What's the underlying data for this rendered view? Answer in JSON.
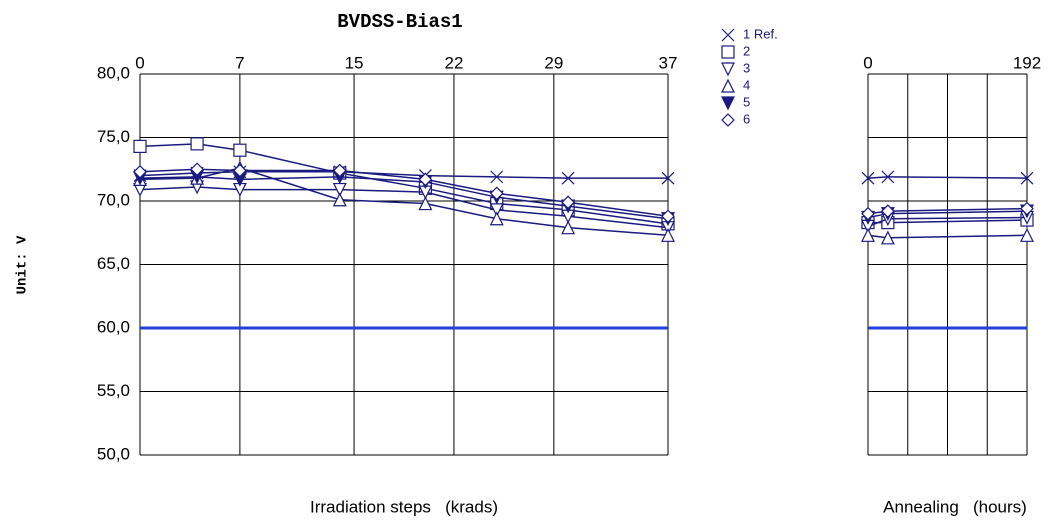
{
  "chart_data": {
    "type": "line",
    "title": "BVDSS-Bias1",
    "ylabel": "Unit: V",
    "xlabel": "Irradiation steps   (krads)",
    "x2label": "Annealing   (hours)",
    "x": [
      0,
      4,
      7,
      14,
      20,
      25,
      30,
      37
    ],
    "x2": [
      0,
      24,
      192
    ],
    "xlim": [
      0,
      37
    ],
    "xticks": [
      0,
      7,
      15,
      22,
      29,
      37
    ],
    "x2lim": [
      0,
      192
    ],
    "x2ticks": [
      0,
      192
    ],
    "x2grid": [
      0,
      48,
      96,
      144,
      192
    ],
    "ylim": [
      50,
      80
    ],
    "yticks": [
      {
        "value": 50,
        "label": "50,0"
      },
      {
        "value": 55,
        "label": "55,0"
      },
      {
        "value": 60,
        "label": "60,0"
      },
      {
        "value": 65,
        "label": "65,0"
      },
      {
        "value": 70,
        "label": "70,0"
      },
      {
        "value": 75,
        "label": "75,0"
      },
      {
        "value": 80,
        "label": "80,0"
      }
    ],
    "grid": true,
    "limit": 60,
    "limit_color": "#1f3fe0",
    "series": [
      {
        "name": "1 Ref.",
        "marker": "x",
        "color": "#1a1a80",
        "values": [
          72.0,
          72.2,
          72.3,
          72.3,
          72.0,
          71.9,
          71.8,
          71.8
        ],
        "values2": [
          71.8,
          71.9,
          71.8
        ]
      },
      {
        "name": "2",
        "marker": "square",
        "color": "#1a1a80",
        "values": [
          74.3,
          74.5,
          74.0,
          72.2,
          71.0,
          69.8,
          69.3,
          68.2
        ],
        "values2": [
          68.3,
          68.3,
          68.5
        ]
      },
      {
        "name": "3",
        "marker": "tri-down",
        "color": "#1a1a80",
        "values": [
          70.9,
          71.1,
          70.9,
          70.9,
          70.7,
          69.3,
          68.8,
          67.9
        ],
        "values2": [
          68.0,
          68.6,
          68.7
        ]
      },
      {
        "name": "4",
        "marker": "tri-up",
        "color": "#1a1a80",
        "values": [
          71.7,
          71.8,
          72.6,
          70.1,
          69.8,
          68.6,
          67.9,
          67.3
        ],
        "values2": [
          67.3,
          67.1,
          67.3
        ]
      },
      {
        "name": "5",
        "marker": "tri-down-filled",
        "color": "#1a1a80",
        "values": [
          71.8,
          71.9,
          71.7,
          71.9,
          71.5,
          70.3,
          69.6,
          68.6
        ],
        "values2": [
          68.7,
          69.0,
          69.2
        ]
      },
      {
        "name": "6",
        "marker": "diamond",
        "color": "#1a1a80",
        "values": [
          72.3,
          72.5,
          72.4,
          72.4,
          71.7,
          70.6,
          69.9,
          68.8
        ],
        "values2": [
          69.0,
          69.2,
          69.4
        ]
      }
    ]
  }
}
